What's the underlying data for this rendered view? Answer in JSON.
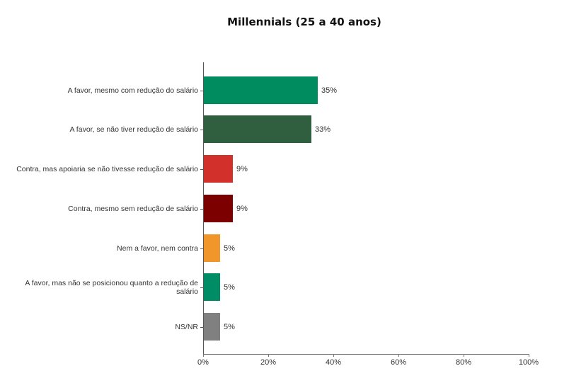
{
  "chart_data": {
    "type": "bar",
    "orientation": "horizontal",
    "title": "Millennials (25 a 40 anos)",
    "xlabel": "",
    "ylabel": "",
    "xlim": [
      0,
      100
    ],
    "grid": false,
    "legend": null,
    "categories": [
      "A favor, mesmo com redução do salário",
      "A favor, se não tiver redução de salário",
      "Contra, mas apoiaria se não tivesse redução de salário",
      "Contra, mesmo sem redução de salário",
      "Nem a favor, nem contra",
      "A favor, mas não se posicionou quanto a redução de salário",
      "NS/NR"
    ],
    "values": [
      35,
      33,
      9,
      9,
      5,
      5,
      5
    ],
    "value_labels": [
      "35%",
      "33%",
      "9%",
      "9%",
      "5%",
      "5%",
      "5%"
    ],
    "colors": [
      "#008c5e",
      "#2f5f3f",
      "#d2302a",
      "#7d0000",
      "#f0962a",
      "#008c64",
      "#808080"
    ],
    "x_ticks": [
      "0%",
      "20%",
      "40%",
      "60%",
      "80%",
      "100%"
    ]
  }
}
